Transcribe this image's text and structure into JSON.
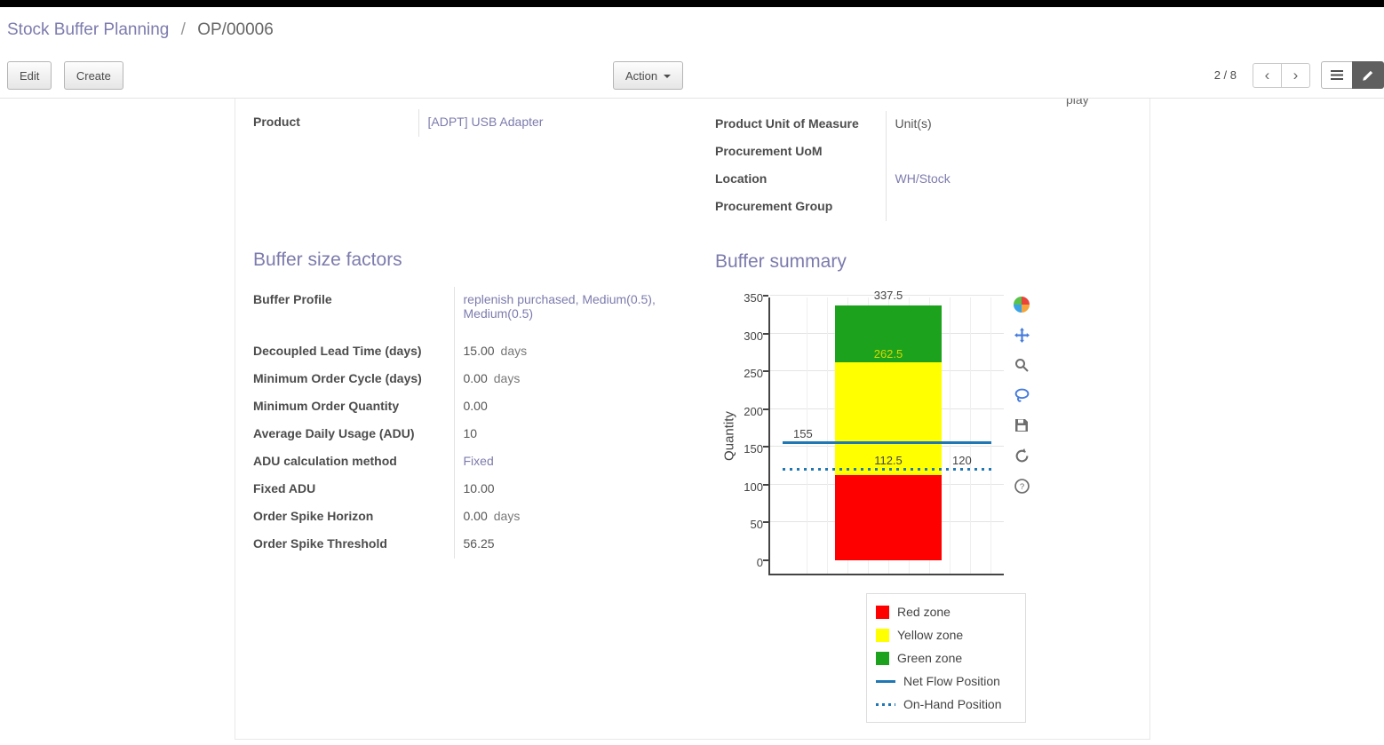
{
  "colors": {
    "accent": "#7c7bad",
    "topbar": "#000000"
  },
  "breadcrumb": {
    "parent": "Stock Buffer Planning",
    "separator": "/",
    "current": "OP/00006"
  },
  "control_panel": {
    "edit": "Edit",
    "create": "Create",
    "action": "Action",
    "pager": "2 / 8",
    "icons": {
      "previous": "‹",
      "next": "›"
    }
  },
  "sheet": {
    "clipped_text": "play",
    "fields_left": [
      {
        "label": "Product",
        "value": "[ADPT] USB Adapter"
      }
    ],
    "fields_right": [
      {
        "label": "Product Unit of Measure",
        "value": "Unit(s)"
      },
      {
        "label": "Procurement UoM",
        "value": ""
      },
      {
        "label": "Location",
        "value": "WH/Stock"
      },
      {
        "label": "Procurement Group",
        "value": ""
      }
    ],
    "buffer_factors": {
      "title": "Buffer size factors",
      "fields": [
        {
          "label": "Buffer Profile",
          "value": "replenish purchased, Medium(0.5), Medium(0.5)"
        },
        {
          "label": "Decoupled Lead Time (days)",
          "value": "15.00",
          "suffix": "days"
        },
        {
          "label": "Minimum Order Cycle (days)",
          "value": "0.00",
          "suffix": "days"
        },
        {
          "label": "Minimum Order Quantity",
          "value": "0.00"
        },
        {
          "label": "Average Daily Usage (ADU)",
          "value": "10"
        },
        {
          "label": "ADU calculation method",
          "value": "Fixed"
        },
        {
          "label": "Fixed ADU",
          "value": "10.00"
        },
        {
          "label": "Order Spike Horizon",
          "value": "0.00",
          "suffix": "days"
        },
        {
          "label": "Order Spike Threshold",
          "value": "56.25"
        }
      ]
    },
    "buffer_summary": {
      "title": "Buffer summary"
    }
  },
  "chart_data": {
    "type": "bar",
    "title": "",
    "xlabel": "",
    "ylabel": "Quantity",
    "ylim": [
      0,
      350
    ],
    "yticks": [
      0,
      50,
      100,
      150,
      200,
      250,
      300,
      350
    ],
    "zones": [
      {
        "name": "Red zone",
        "from": 0,
        "to": 112.5,
        "color": "#ff0000"
      },
      {
        "name": "Yellow zone",
        "from": 112.5,
        "to": 262.5,
        "color": "#ffff00"
      },
      {
        "name": "Green zone",
        "from": 262.5,
        "to": 337.5,
        "color": "#1ca21c"
      }
    ],
    "lines": [
      {
        "name": "Net Flow Position",
        "value": 155,
        "style": "solid",
        "color": "#1f77b4"
      },
      {
        "name": "On-Hand Position",
        "value": 120,
        "style": "dotted",
        "color": "#1f77b4"
      }
    ],
    "labels": {
      "total": "337.5",
      "yellow_top": "262.5",
      "red_top": "112.5",
      "net_flow": "155",
      "on_hand": "120"
    },
    "legend": [
      "Red zone",
      "Yellow zone",
      "Green zone",
      "Net Flow Position",
      "On-Hand Position"
    ],
    "legend_position": "below-right",
    "grid": true
  }
}
